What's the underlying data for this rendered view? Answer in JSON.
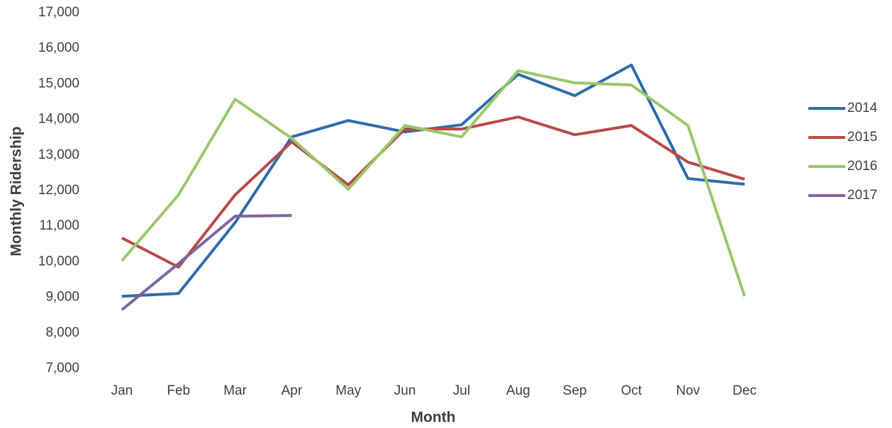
{
  "chart_data": {
    "type": "line",
    "x_label": "Month",
    "y_label": "Monthly Ridership",
    "categories": [
      "Jan",
      "Feb",
      "Mar",
      "Apr",
      "May",
      "Jun",
      "Jul",
      "Aug",
      "Sep",
      "Oct",
      "Nov",
      "Dec"
    ],
    "series": [
      {
        "name": "2014",
        "color": "#2e6cad",
        "values": [
          9030,
          9110,
          11100,
          13510,
          13970,
          13650,
          13850,
          15270,
          14670,
          15530,
          12340,
          12180
        ]
      },
      {
        "name": "2015",
        "color": "#b84a48",
        "values": [
          10670,
          9850,
          11880,
          13370,
          12160,
          13730,
          13730,
          14070,
          13570,
          13830,
          12800,
          12320
        ]
      },
      {
        "name": "2016",
        "color": "#9bc76a",
        "values": [
          10030,
          11880,
          14570,
          13470,
          12040,
          13830,
          13510,
          15370,
          15030,
          14970,
          13830,
          9030
        ]
      },
      {
        "name": "2017",
        "color": "#7e65a3",
        "values": [
          8650,
          9950,
          11280,
          11300,
          null,
          null,
          null,
          null,
          null,
          null,
          null,
          null
        ]
      }
    ],
    "ylim": [
      7000,
      17000
    ],
    "yticks": [
      {
        "value": 7000,
        "label": "7,000"
      },
      {
        "value": 8000,
        "label": "8,000"
      },
      {
        "value": 9000,
        "label": "9,000"
      },
      {
        "value": 10000,
        "label": "10,000"
      },
      {
        "value": 11000,
        "label": "11,000"
      },
      {
        "value": 12000,
        "label": "12,000"
      },
      {
        "value": 13000,
        "label": "13,000"
      },
      {
        "value": 14000,
        "label": "14,000"
      },
      {
        "value": 15000,
        "label": "15,000"
      },
      {
        "value": 16000,
        "label": "16,000"
      },
      {
        "value": 17000,
        "label": "17,000"
      }
    ],
    "grid": false,
    "legend": "right"
  }
}
